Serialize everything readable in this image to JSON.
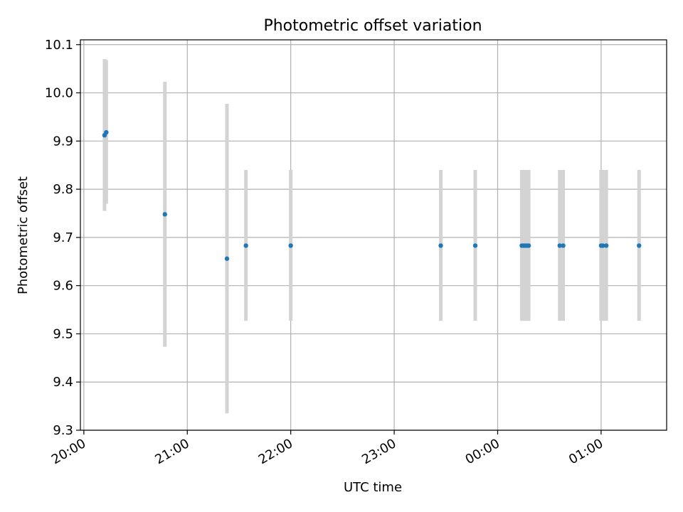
{
  "chart_data": {
    "type": "scatter",
    "title": "Photometric offset variation",
    "xlabel": "UTC time",
    "ylabel": "Photometric offset",
    "x_unit": "UTC clock time (hours past 20:00 on the start day)",
    "xlim": [
      "19:58",
      "01:38"
    ],
    "ylim": [
      9.3,
      10.11
    ],
    "xticks": [
      "20:00",
      "21:00",
      "22:00",
      "23:00",
      "00:00",
      "01:00"
    ],
    "yticks": [
      9.3,
      9.4,
      9.5,
      9.6,
      9.7,
      9.8,
      9.9,
      10.0,
      10.1
    ],
    "grid": true,
    "colors": {
      "point": "#1f77b4",
      "errorbar": "#d3d3d3",
      "grid": "#b0b0b0",
      "axis": "#000000"
    },
    "points": [
      {
        "x": "20:12",
        "y": 9.912,
        "yerr_low": 9.755,
        "yerr_high": 10.07
      },
      {
        "x": "20:13",
        "y": 9.918,
        "yerr_low": 9.77,
        "yerr_high": 10.068
      },
      {
        "x": "20:47",
        "y": 9.748,
        "yerr_low": 9.473,
        "yerr_high": 10.023
      },
      {
        "x": "21:23",
        "y": 9.656,
        "yerr_low": 9.335,
        "yerr_high": 9.977
      },
      {
        "x": "21:34",
        "y": 9.683,
        "yerr_low": 9.527,
        "yerr_high": 9.84
      },
      {
        "x": "22:00",
        "y": 9.683,
        "yerr_low": 9.527,
        "yerr_high": 9.84
      },
      {
        "x": "23:27",
        "y": 9.683,
        "yerr_low": 9.527,
        "yerr_high": 9.84
      },
      {
        "x": "23:47",
        "y": 9.683,
        "yerr_low": 9.527,
        "yerr_high": 9.84
      },
      {
        "x": "00:14",
        "y": 9.683,
        "yerr_low": 9.527,
        "yerr_high": 9.84
      },
      {
        "x": "00:15",
        "y": 9.683,
        "yerr_low": 9.527,
        "yerr_high": 9.84
      },
      {
        "x": "00:16",
        "y": 9.683,
        "yerr_low": 9.527,
        "yerr_high": 9.84
      },
      {
        "x": "00:17",
        "y": 9.683,
        "yerr_low": 9.527,
        "yerr_high": 9.84
      },
      {
        "x": "00:18",
        "y": 9.683,
        "yerr_low": 9.527,
        "yerr_high": 9.84
      },
      {
        "x": "00:36",
        "y": 9.683,
        "yerr_low": 9.527,
        "yerr_high": 9.84
      },
      {
        "x": "00:38",
        "y": 9.683,
        "yerr_low": 9.527,
        "yerr_high": 9.84
      },
      {
        "x": "01:00",
        "y": 9.683,
        "yerr_low": 9.527,
        "yerr_high": 9.84
      },
      {
        "x": "01:01",
        "y": 9.683,
        "yerr_low": 9.527,
        "yerr_high": 9.84
      },
      {
        "x": "01:03",
        "y": 9.683,
        "yerr_low": 9.527,
        "yerr_high": 9.84
      },
      {
        "x": "01:22",
        "y": 9.683,
        "yerr_low": 9.527,
        "yerr_high": 9.84
      }
    ]
  }
}
